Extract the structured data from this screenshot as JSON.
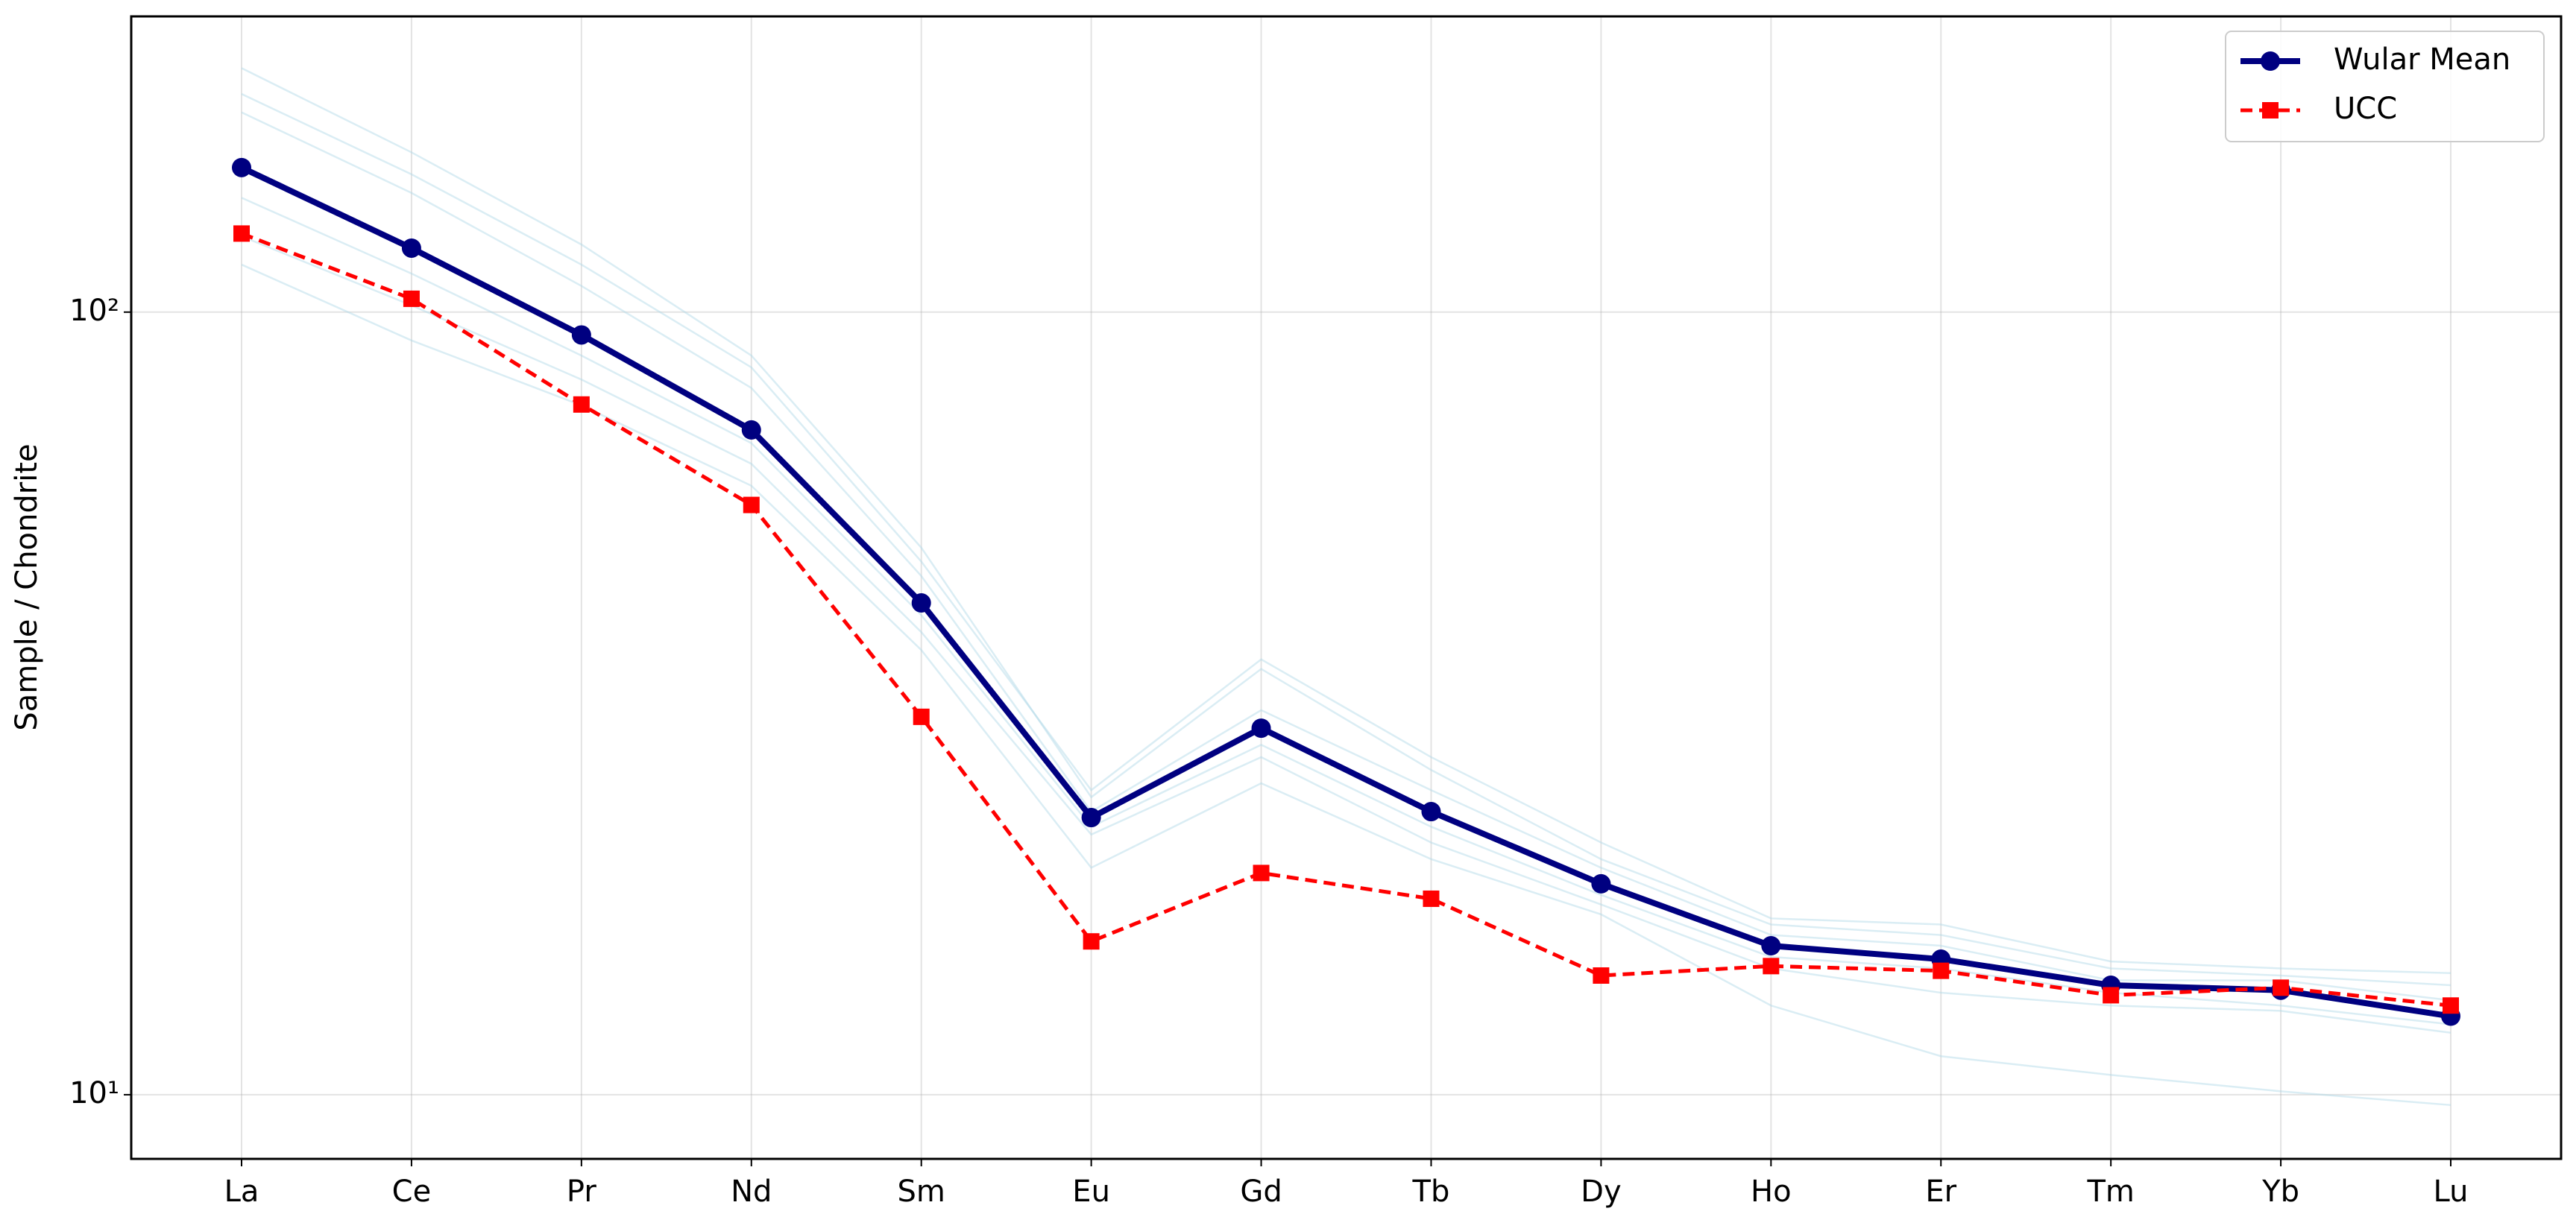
{
  "chart_data": {
    "type": "line",
    "y_label": "Sample / Chondrite",
    "categories": [
      "La",
      "Ce",
      "Pr",
      "Nd",
      "Sm",
      "Eu",
      "Gd",
      "Tb",
      "Dy",
      "Ho",
      "Er",
      "Tm",
      "Yb",
      "Lu"
    ],
    "series": [
      {
        "name": "Wular Mean",
        "color": "#000080",
        "marker": "circle",
        "linestyle": "solid",
        "values": [
          153,
          120.7,
          93.5,
          70.7,
          42.5,
          22.6,
          29.4,
          23.0,
          18.6,
          15.5,
          14.9,
          13.8,
          13.6,
          12.6
        ]
      },
      {
        "name": "UCC",
        "color": "#ff0000",
        "marker": "square",
        "linestyle": "dashed",
        "values": [
          126,
          104,
          76.2,
          56.7,
          30.4,
          15.7,
          19.2,
          17.8,
          14.2,
          14.6,
          14.4,
          13.4,
          13.7,
          13.0
        ]
      }
    ],
    "samples": {
      "color": "#add8e6",
      "lines": [
        [
          205,
          160,
          122,
          88,
          50,
          24,
          35,
          26,
          20,
          16.5,
          16,
          14.5,
          14.2,
          13.8
        ],
        [
          180,
          142,
          108,
          80,
          46,
          23,
          31,
          24.5,
          19.5,
          16,
          15.5,
          14,
          14,
          13.2
        ],
        [
          140,
          112,
          88,
          68,
          41,
          22,
          28,
          22,
          18,
          15,
          14.5,
          13.5,
          13,
          12.3
        ],
        [
          125,
          102,
          82,
          64,
          39,
          21.5,
          27,
          21,
          17.5,
          14.5,
          13.5,
          13,
          12.8,
          12
        ],
        [
          115,
          92,
          76,
          60,
          37,
          19.5,
          25,
          20,
          17,
          13,
          11.2,
          10.6,
          10.1,
          9.7
        ],
        [
          190,
          150,
          115,
          85,
          48,
          24.5,
          36,
          27,
          21,
          16.8,
          16.5,
          14.8,
          14.5,
          14.3
        ]
      ]
    },
    "ylim": [
      8.28,
      238.7
    ],
    "log_y": true,
    "yticks": [
      {
        "value": 10,
        "label": "10¹"
      },
      {
        "value": 100,
        "label": "10²"
      }
    ],
    "grid": true,
    "legend": "upper right"
  }
}
